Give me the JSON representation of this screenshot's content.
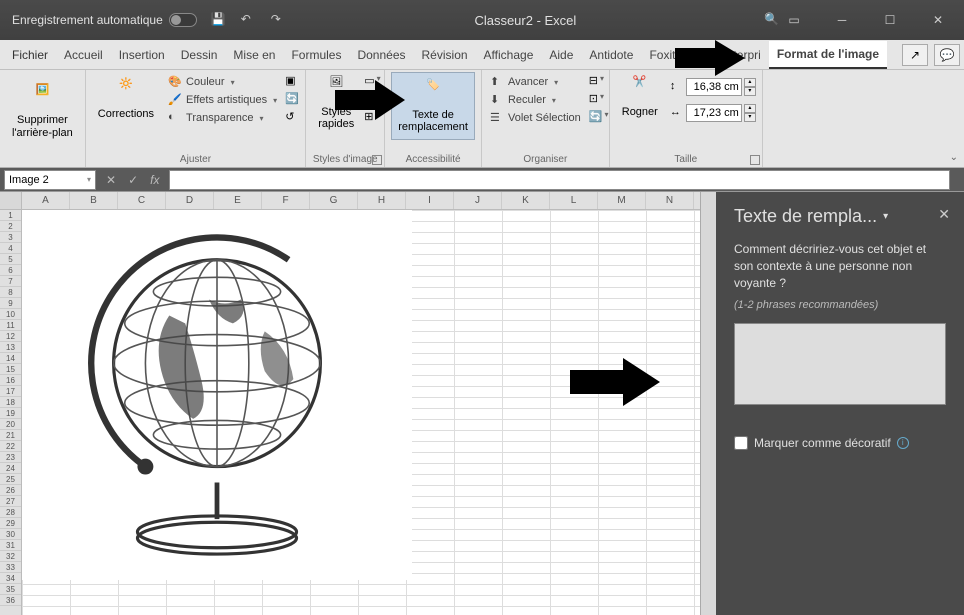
{
  "titlebar": {
    "autosave_label": "Enregistrement automatique",
    "doc_title": "Classeur2 - Excel"
  },
  "tabs": {
    "file": "Fichier",
    "items": [
      "Accueil",
      "Insertion",
      "Dessin",
      "Mise en",
      "Formules",
      "Données",
      "Révision",
      "Affichage",
      "Aide",
      "Antidote",
      "Foxit PDF",
      "Enterpri"
    ],
    "active": "Format de l'image"
  },
  "ribbon": {
    "remove_bg": "Supprimer\nl'arrière-plan",
    "corrections": "Corrections",
    "color": "Couleur",
    "artistic": "Effets artistiques",
    "transparency": "Transparence",
    "adjust_label": "Ajuster",
    "quick_styles": "Styles\nrapides",
    "styles_label": "Styles d'image",
    "alt_text": "Texte de\nremplacement",
    "accessibility_label": "Accessibilité",
    "bring_fwd": "Avancer",
    "send_back": "Reculer",
    "selection": "Volet Sélection",
    "organize_label": "Organiser",
    "crop": "Rogner",
    "height_val": "16,38 cm",
    "width_val": "17,23 cm",
    "size_label": "Taille"
  },
  "formula": {
    "namebox": "Image 2"
  },
  "grid": {
    "cols": [
      "A",
      "B",
      "C",
      "D",
      "E",
      "F",
      "G",
      "H",
      "I",
      "J",
      "K",
      "L",
      "M",
      "N"
    ],
    "rows_count": 36
  },
  "pane": {
    "title": "Texte de rempla...",
    "question": "Comment décririez-vous cet objet et son contexte à une personne non voyante ?",
    "hint": "(1-2 phrases recommandées)",
    "decorative": "Marquer comme décoratif"
  },
  "colors": {
    "titlebar_bg": "#444444",
    "ribbon_bg": "#e6e6e6",
    "pane_bg": "#4a4a4a",
    "highlight": "#c8d8e8"
  }
}
